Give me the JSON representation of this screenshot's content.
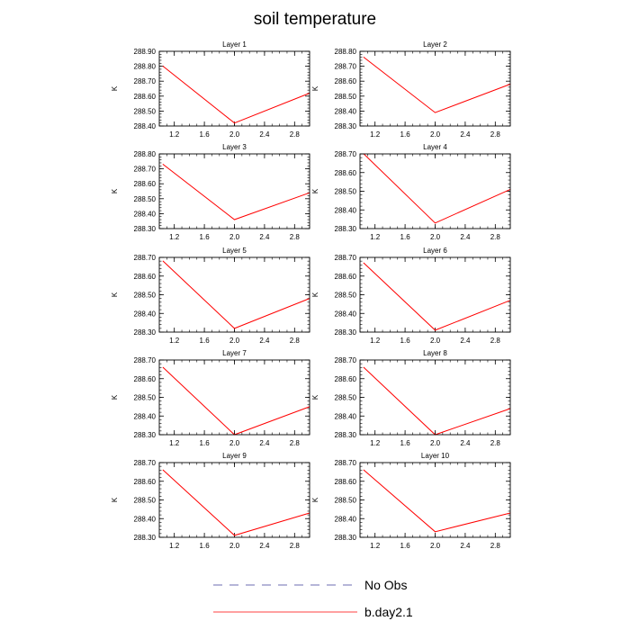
{
  "figure": {
    "title": "soil temperature",
    "legend": [
      {
        "label": "No Obs",
        "color": "#3d3d99",
        "dash": true
      },
      {
        "label": "b.day2.1",
        "color": "#ff0000",
        "dash": false
      }
    ]
  },
  "chart_data": [
    {
      "type": "line",
      "title": "Layer 1",
      "ylabel": "K",
      "xlim": [
        1.0,
        3.0
      ],
      "ylim": [
        288.4,
        288.9
      ],
      "xticks": [
        "1.2",
        "1.6",
        "2.0",
        "2.4",
        "2.8"
      ],
      "yticks": [
        "288.40",
        "288.50",
        "288.60",
        "288.70",
        "288.80",
        "288.90"
      ],
      "series": [
        {
          "color": "#ff0000",
          "x": [
            1.05,
            2.0,
            3.0
          ],
          "y": [
            288.8,
            288.42,
            288.62
          ]
        }
      ]
    },
    {
      "type": "line",
      "title": "Layer 2",
      "ylabel": "K",
      "xlim": [
        1.0,
        3.0
      ],
      "ylim": [
        288.3,
        288.8
      ],
      "xticks": [
        "1.2",
        "1.6",
        "2.0",
        "2.4",
        "2.8"
      ],
      "yticks": [
        "288.30",
        "288.40",
        "288.50",
        "288.60",
        "288.70",
        "288.80"
      ],
      "series": [
        {
          "color": "#ff0000",
          "x": [
            1.05,
            2.0,
            3.0
          ],
          "y": [
            288.76,
            288.39,
            288.58
          ]
        }
      ]
    },
    {
      "type": "line",
      "title": "Layer 3",
      "ylabel": "K",
      "xlim": [
        1.0,
        3.0
      ],
      "ylim": [
        288.3,
        288.8
      ],
      "xticks": [
        "1.2",
        "1.6",
        "2.0",
        "2.4",
        "2.8"
      ],
      "yticks": [
        "288.30",
        "288.40",
        "288.50",
        "288.60",
        "288.70",
        "288.80"
      ],
      "series": [
        {
          "color": "#ff0000",
          "x": [
            1.05,
            2.0,
            3.0
          ],
          "y": [
            288.73,
            288.36,
            288.54
          ]
        }
      ]
    },
    {
      "type": "line",
      "title": "Layer 4",
      "ylabel": "K",
      "xlim": [
        1.0,
        3.0
      ],
      "ylim": [
        288.3,
        288.7
      ],
      "xticks": [
        "1.2",
        "1.6",
        "2.0",
        "2.4",
        "2.8"
      ],
      "yticks": [
        "288.30",
        "288.40",
        "288.50",
        "288.60",
        "288.70"
      ],
      "series": [
        {
          "color": "#ff0000",
          "x": [
            1.05,
            2.0,
            3.0
          ],
          "y": [
            288.7,
            288.33,
            288.51
          ]
        }
      ]
    },
    {
      "type": "line",
      "title": "Layer 5",
      "ylabel": "K",
      "xlim": [
        1.0,
        3.0
      ],
      "ylim": [
        288.3,
        288.7
      ],
      "xticks": [
        "1.2",
        "1.6",
        "2.0",
        "2.4",
        "2.8"
      ],
      "yticks": [
        "288.30",
        "288.40",
        "288.50",
        "288.60",
        "288.70"
      ],
      "series": [
        {
          "color": "#ff0000",
          "x": [
            1.05,
            2.0,
            3.0
          ],
          "y": [
            288.68,
            288.32,
            288.48
          ]
        }
      ]
    },
    {
      "type": "line",
      "title": "Layer 6",
      "ylabel": "K",
      "xlim": [
        1.0,
        3.0
      ],
      "ylim": [
        288.3,
        288.7
      ],
      "xticks": [
        "1.2",
        "1.6",
        "2.0",
        "2.4",
        "2.8"
      ],
      "yticks": [
        "288.30",
        "288.40",
        "288.50",
        "288.60",
        "288.70"
      ],
      "series": [
        {
          "color": "#ff0000",
          "x": [
            1.05,
            2.0,
            3.0
          ],
          "y": [
            288.67,
            288.31,
            288.47
          ]
        }
      ]
    },
    {
      "type": "line",
      "title": "Layer 7",
      "ylabel": "K",
      "xlim": [
        1.0,
        3.0
      ],
      "ylim": [
        288.3,
        288.7
      ],
      "xticks": [
        "1.2",
        "1.6",
        "2.0",
        "2.4",
        "2.8"
      ],
      "yticks": [
        "288.30",
        "288.40",
        "288.50",
        "288.60",
        "288.70"
      ],
      "series": [
        {
          "color": "#ff0000",
          "x": [
            1.05,
            2.0,
            3.0
          ],
          "y": [
            288.66,
            288.3,
            288.45
          ]
        }
      ]
    },
    {
      "type": "line",
      "title": "Layer 8",
      "ylabel": "K",
      "xlim": [
        1.0,
        3.0
      ],
      "ylim": [
        288.3,
        288.7
      ],
      "xticks": [
        "1.2",
        "1.6",
        "2.0",
        "2.4",
        "2.8"
      ],
      "yticks": [
        "288.30",
        "288.40",
        "288.50",
        "288.60",
        "288.70"
      ],
      "series": [
        {
          "color": "#ff0000",
          "x": [
            1.05,
            2.0,
            3.0
          ],
          "y": [
            288.66,
            288.3,
            288.44
          ]
        }
      ]
    },
    {
      "type": "line",
      "title": "Layer 9",
      "ylabel": "K",
      "xlim": [
        1.0,
        3.0
      ],
      "ylim": [
        288.3,
        288.7
      ],
      "xticks": [
        "1.2",
        "1.6",
        "2.0",
        "2.4",
        "2.8"
      ],
      "yticks": [
        "288.30",
        "288.40",
        "288.50",
        "288.60",
        "288.70"
      ],
      "series": [
        {
          "color": "#ff0000",
          "x": [
            1.05,
            2.0,
            3.0
          ],
          "y": [
            288.66,
            288.31,
            288.43
          ]
        }
      ]
    },
    {
      "type": "line",
      "title": "Layer 10",
      "ylabel": "K",
      "xlim": [
        1.0,
        3.0
      ],
      "ylim": [
        288.3,
        288.7
      ],
      "xticks": [
        "1.2",
        "1.6",
        "2.0",
        "2.4",
        "2.8"
      ],
      "yticks": [
        "288.30",
        "288.40",
        "288.50",
        "288.60",
        "288.70"
      ],
      "series": [
        {
          "color": "#ff0000",
          "x": [
            1.05,
            2.0,
            3.0
          ],
          "y": [
            288.66,
            288.33,
            288.43
          ]
        }
      ]
    }
  ]
}
